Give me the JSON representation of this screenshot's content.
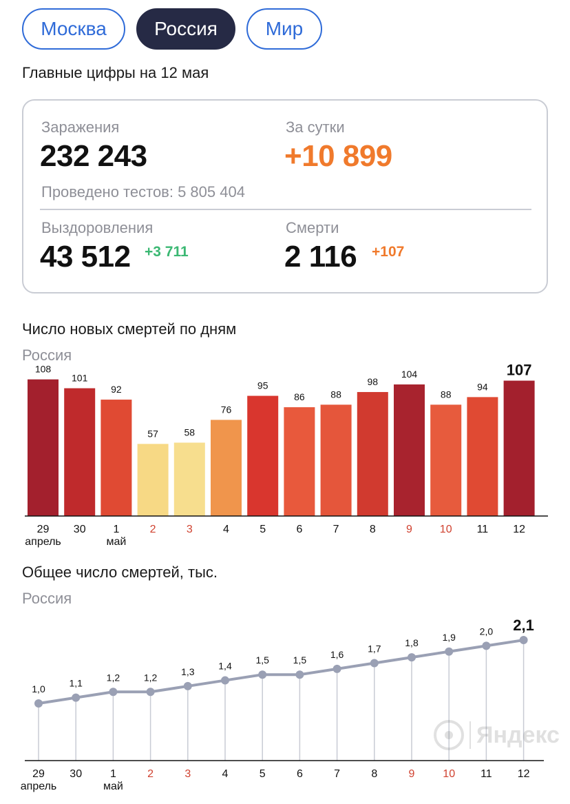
{
  "tabs": [
    {
      "label": "Москва",
      "active": false
    },
    {
      "label": "Россия",
      "active": true
    },
    {
      "label": "Мир",
      "active": false
    }
  ],
  "subtitle": "Главные цифры на 12 мая",
  "stats": {
    "infections_label": "Заражения",
    "infections_value": "232 243",
    "daily_label": "За сутки",
    "daily_value": "+10 899",
    "tests_text": "Проведено тестов: 5 805 404",
    "recoveries_label": "Выздоровления",
    "recoveries_value": "43 512",
    "recoveries_delta": "+3 711",
    "deaths_label": "Смерти",
    "deaths_value": "2 116",
    "deaths_delta": "+107"
  },
  "colors": {
    "accent_blue": "#2f6bd8",
    "active_tab": "#262a45",
    "orange": "#f07a2c",
    "green": "#3bb873",
    "line": "#9aa0b4",
    "weekend_label": "#d0412f"
  },
  "watermark": {
    "text": "Яндекс",
    "icon": "yandex-logo-icon"
  },
  "chart_data": [
    {
      "type": "bar",
      "title": "Число новых смертей по дням",
      "subtitle": "Россия",
      "categories": [
        "29",
        "30",
        "1",
        "2",
        "3",
        "4",
        "5",
        "6",
        "7",
        "8",
        "9",
        "10",
        "11",
        "12"
      ],
      "month_labels": [
        {
          "index": 0,
          "text": "апрель"
        },
        {
          "index": 2,
          "text": "май"
        }
      ],
      "weekend_indices": [
        3,
        4,
        10,
        11
      ],
      "values": [
        108,
        101,
        92,
        57,
        58,
        76,
        95,
        86,
        88,
        98,
        104,
        88,
        94,
        107
      ],
      "bar_colors": [
        "#a3202d",
        "#bf2a2c",
        "#e04a33",
        "#f7d985",
        "#f7de8e",
        "#f0954c",
        "#d9362e",
        "#e8593c",
        "#e5563b",
        "#d13a2f",
        "#a8232e",
        "#e75b3d",
        "#e04a33",
        "#a3202d"
      ],
      "highlight_last": true,
      "ylim": [
        0,
        110
      ]
    },
    {
      "type": "line",
      "title": "Общее число смертей, тыс.",
      "subtitle": "Россия",
      "categories": [
        "29",
        "30",
        "1",
        "2",
        "3",
        "4",
        "5",
        "6",
        "7",
        "8",
        "9",
        "10",
        "11",
        "12"
      ],
      "month_labels": [
        {
          "index": 0,
          "text": "апрель"
        },
        {
          "index": 2,
          "text": "май"
        }
      ],
      "weekend_indices": [
        3,
        4,
        10,
        11
      ],
      "values": [
        1.0,
        1.1,
        1.2,
        1.2,
        1.3,
        1.4,
        1.5,
        1.5,
        1.6,
        1.7,
        1.8,
        1.9,
        2.0,
        2.1
      ],
      "value_labels": [
        "1,0",
        "1,1",
        "1,2",
        "1,2",
        "1,3",
        "1,4",
        "1,5",
        "1,5",
        "1,6",
        "1,7",
        "1,8",
        "1,9",
        "2,0",
        "2,1"
      ],
      "highlight_last": true
    }
  ]
}
